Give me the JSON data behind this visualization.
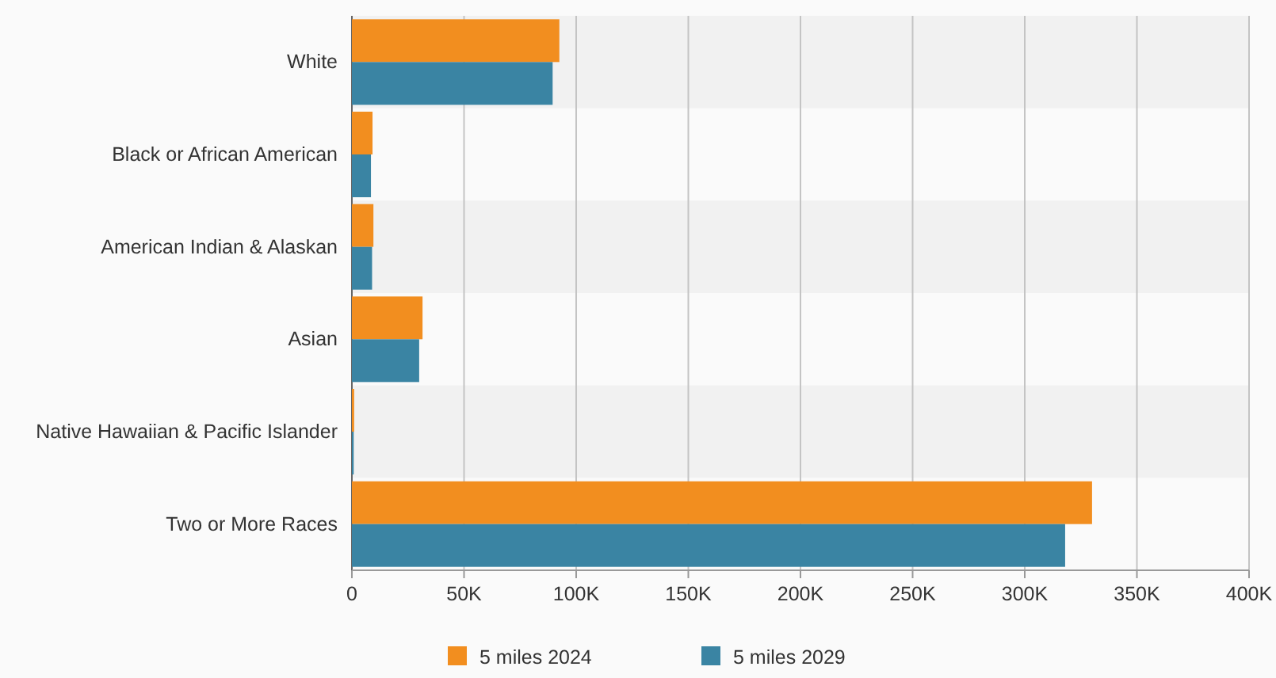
{
  "chart_data": {
    "type": "bar",
    "orientation": "horizontal",
    "categories": [
      "White",
      "Black or African American",
      "American Indian & Alaskan",
      "Asian",
      "Native Hawaiian & Pacific Islander",
      "Two or More Races"
    ],
    "series": [
      {
        "name": "5 miles 2024",
        "color": "#f28e1f",
        "values": [
          92500,
          9200,
          9600,
          31500,
          1000,
          330000
        ]
      },
      {
        "name": "5 miles 2029",
        "color": "#3a84a3",
        "values": [
          89500,
          8500,
          9000,
          30000,
          800,
          318000
        ]
      }
    ],
    "xlim": [
      0,
      400000
    ],
    "xticks": [
      {
        "value": 0,
        "label": "0"
      },
      {
        "value": 50000,
        "label": "50K"
      },
      {
        "value": 100000,
        "label": "100K"
      },
      {
        "value": 150000,
        "label": "150K"
      },
      {
        "value": 200000,
        "label": "200K"
      },
      {
        "value": 250000,
        "label": "250K"
      },
      {
        "value": 300000,
        "label": "300K"
      },
      {
        "value": 350000,
        "label": "350K"
      },
      {
        "value": 400000,
        "label": "400K"
      }
    ],
    "grid": "x",
    "legend": "bottom"
  }
}
